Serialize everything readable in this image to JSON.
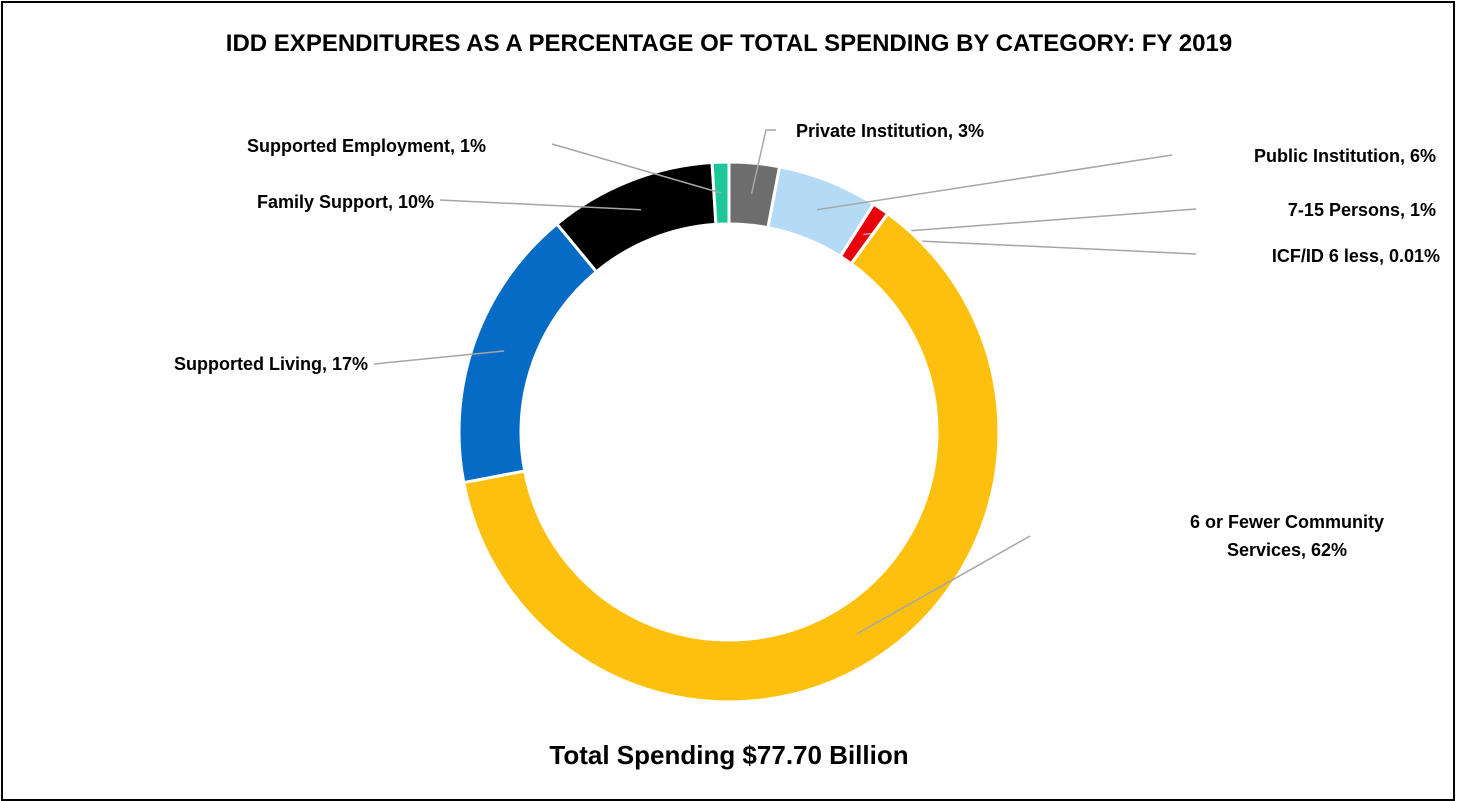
{
  "chart_data": {
    "type": "donut",
    "title": "IDD EXPENDITURES AS A PERCENTAGE OF TOTAL SPENDING BY CATEGORY: FY 2019",
    "footer": "Total Spending $77.70 Billion",
    "slices": [
      {
        "name": "Private Institution",
        "value": 3,
        "label": "Private Institution, 3%",
        "color": "#6d6d6d"
      },
      {
        "name": "Public Institution",
        "value": 6,
        "label": "Public Institution, 6%",
        "color": "#b4daf6"
      },
      {
        "name": "7-15 Persons",
        "value": 1,
        "label": "7-15 Persons, 1%",
        "color": "#e8000b"
      },
      {
        "name": "ICF/ID 6 less",
        "value": 0.01,
        "label": "ICF/ID 6 less, 0.01%",
        "color": "#c0c0c0"
      },
      {
        "name": "6 or Fewer Community Services",
        "value": 62,
        "label": [
          "6 or Fewer Community",
          "Services, 62%"
        ],
        "color": "#fdc00f"
      },
      {
        "name": "Supported Living",
        "value": 17,
        "label": "Supported Living, 17%",
        "color": "#056bc4"
      },
      {
        "name": "Family Support",
        "value": 10,
        "label": "Family Support, 10%",
        "color": "#000000"
      },
      {
        "name": "Supported Employment",
        "value": 1,
        "label": "Supported Employment, 1%",
        "color": "#1cc899"
      }
    ]
  }
}
